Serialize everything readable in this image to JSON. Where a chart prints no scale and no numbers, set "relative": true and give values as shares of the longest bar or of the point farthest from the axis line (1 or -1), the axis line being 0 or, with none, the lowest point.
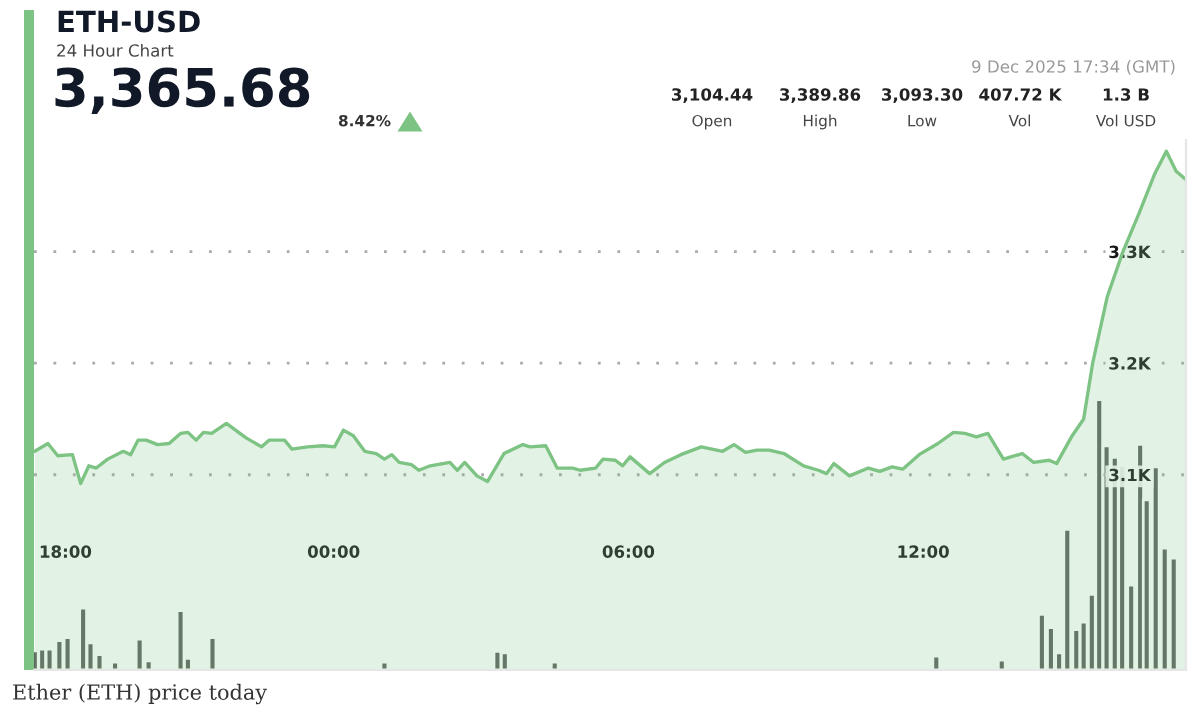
{
  "chart_data": [
    {
      "type": "area",
      "title": "ETH-USD",
      "subtitle": "24 Hour Chart",
      "annotations": [
        "3,365.68",
        "8.42%",
        "9 Dec 2025 17:34 (GMT)",
        "3,104.44",
        "3,389.86",
        "3,093.30",
        "407.72 K",
        "1.3 B",
        "Open",
        "High",
        "Low",
        "Vol",
        "Vol USD",
        "Ether (ETH) price today"
      ],
      "color": "#7dc383",
      "grid": "y",
      "x": [
        "2025-12-08T17:55",
        "2025-12-08T18:11",
        "2025-12-08T18:23",
        "2025-12-08T18:41",
        "2025-12-08T18:51",
        "2025-12-08T19:01",
        "2025-12-08T19:10",
        "2025-12-08T19:24",
        "2025-12-08T19:43",
        "2025-12-08T19:52",
        "2025-12-08T20:01",
        "2025-12-08T20:11",
        "2025-12-08T20:25",
        "2025-12-08T20:39",
        "2025-12-08T20:53",
        "2025-12-08T21:02",
        "2025-12-08T21:12",
        "2025-12-08T21:21",
        "2025-12-08T21:31",
        "2025-12-08T21:49",
        "2025-12-08T22:13",
        "2025-12-08T22:32",
        "2025-12-08T22:41",
        "2025-12-08T23:00",
        "2025-12-08T23:09",
        "2025-12-08T23:28",
        "2025-12-08T23:47",
        "2025-12-09T00:01",
        "2025-12-09T00:12",
        "2025-12-09T00:24",
        "2025-12-09T00:38",
        "2025-12-09T00:52",
        "2025-12-09T01:02",
        "2025-12-09T01:11",
        "2025-12-09T01:20",
        "2025-12-09T01:35",
        "2025-12-09T01:44",
        "2025-12-09T01:58",
        "2025-12-09T02:22",
        "2025-12-09T02:31",
        "2025-12-09T02:40",
        "2025-12-09T02:55",
        "2025-12-09T03:08",
        "2025-12-09T03:28",
        "2025-12-09T03:51",
        "2025-12-09T04:00",
        "2025-12-09T04:19",
        "2025-12-09T04:33",
        "2025-12-09T04:52",
        "2025-12-09T05:01",
        "2025-12-09T05:20",
        "2025-12-09T05:29",
        "2025-12-09T05:44",
        "2025-12-09T05:53",
        "2025-12-09T06:02",
        "2025-12-09T06:26",
        "2025-12-09T06:44",
        "2025-12-09T07:04",
        "2025-12-09T07:29",
        "2025-12-09T07:55",
        "2025-12-09T08:09",
        "2025-12-09T08:23",
        "2025-12-09T08:37",
        "2025-12-09T08:52",
        "2025-12-09T09:10",
        "2025-12-09T09:34",
        "2025-12-09T09:52",
        "2025-12-09T10:02",
        "2025-12-09T10:11",
        "2025-12-09T10:30",
        "2025-12-09T10:53",
        "2025-12-09T11:07",
        "2025-12-09T11:22",
        "2025-12-09T11:35",
        "2025-12-09T11:55",
        "2025-12-09T12:18",
        "2025-12-09T12:37",
        "2025-12-09T12:51",
        "2025-12-09T13:05",
        "2025-12-09T13:19",
        "2025-12-09T13:38",
        "2025-12-09T14:01",
        "2025-12-09T14:15",
        "2025-12-09T14:34",
        "2025-12-09T14:43",
        "2025-12-09T15:02",
        "2025-12-09T15:16",
        "2025-12-09T15:27",
        "2025-12-09T15:45",
        "2025-12-09T16:04",
        "2025-12-09T16:24",
        "2025-12-09T16:43",
        "2025-12-09T16:57",
        "2025-12-09T17:09",
        "2025-12-09T17:20"
      ],
      "values": [
        3121,
        3128,
        3117,
        3118,
        3092,
        3108,
        3106,
        3114,
        3121,
        3118,
        3131,
        3131,
        3127,
        3128,
        3137,
        3138,
        3131,
        3138,
        3137,
        3146,
        3133,
        3125,
        3131,
        3131,
        3123,
        3125,
        3126,
        3125,
        3140,
        3135,
        3121,
        3119,
        3114,
        3118,
        3111,
        3109,
        3104,
        3108,
        3111,
        3104,
        3111,
        3099,
        3094,
        3119,
        3127,
        3125,
        3126,
        3106,
        3106,
        3104,
        3106,
        3114,
        3113,
        3108,
        3116,
        3101,
        3111,
        3118,
        3125,
        3121,
        3127,
        3120,
        3122,
        3122,
        3119,
        3108,
        3104,
        3101,
        3110,
        3099,
        3106,
        3103,
        3107,
        3105,
        3118,
        3128,
        3138,
        3137,
        3134,
        3137,
        3114,
        3119,
        3111,
        3113,
        3110,
        3135,
        3150,
        3200,
        3260,
        3300,
        3335,
        3370,
        3390,
        3372,
        3365
      ],
      "xlim": [
        "2025-12-08T17:54",
        "2025-12-09T17:21"
      ],
      "xticks": [
        {
          "value": "2025-12-08T18:00",
          "label": "18:00"
        },
        {
          "value": "2025-12-09T00:00",
          "label": "00:00"
        },
        {
          "value": "2025-12-09T06:00",
          "label": "06:00"
        },
        {
          "value": "2025-12-09T12:00",
          "label": "12:00"
        }
      ],
      "ylim": [
        2925,
        3400
      ],
      "yticks": [
        {
          "value": 3100,
          "label": "3.1K"
        },
        {
          "value": 3200,
          "label": "3.2K"
        },
        {
          "value": 3300,
          "label": "3.3K"
        }
      ]
    },
    {
      "type": "bar",
      "relative": true,
      "color": "#5f635f",
      "tick_labels": false,
      "xlim": [
        "2025-12-08T17:54",
        "2025-12-09T17:21"
      ],
      "x": [
        "2025-12-08T17:55",
        "2025-12-08T18:04",
        "2025-12-08T18:13",
        "2025-12-08T18:25",
        "2025-12-08T18:35",
        "2025-12-08T18:54",
        "2025-12-08T19:03",
        "2025-12-08T19:14",
        "2025-12-08T19:33",
        "2025-12-08T20:03",
        "2025-12-08T20:14",
        "2025-12-08T20:23",
        "2025-12-08T20:53",
        "2025-12-08T21:02",
        "2025-12-08T21:32",
        "2025-12-09T01:02",
        "2025-12-09T01:32",
        "2025-12-09T03:20",
        "2025-12-09T03:29",
        "2025-12-09T04:30",
        "2025-12-09T12:16",
        "2025-12-09T13:26",
        "2025-12-09T13:36",
        "2025-12-09T14:25",
        "2025-12-09T14:36",
        "2025-12-09T14:46",
        "2025-12-09T14:56",
        "2025-12-09T15:07",
        "2025-12-09T15:16",
        "2025-12-09T15:26",
        "2025-12-09T15:35",
        "2025-12-09T15:44",
        "2025-12-09T15:54",
        "2025-12-09T16:03",
        "2025-12-09T16:14",
        "2025-12-09T16:25",
        "2025-12-09T16:33",
        "2025-12-09T16:44",
        "2025-12-09T16:55",
        "2025-12-09T17:06"
      ],
      "values": [
        0.071,
        0.077,
        0.077,
        0.109,
        0.12,
        0.229,
        0.1,
        0.057,
        0.029,
        0.114,
        0.034,
        null,
        0.22,
        0.043,
        0.12,
        0.029,
        null,
        0.069,
        0.063,
        0.029,
        0.051,
        null,
        0.037,
        0.206,
        0.157,
        0.063,
        0.52,
        0.149,
        0.177,
        0.28,
        1,
        0.829,
        0.786,
        0.757,
        0.314,
        0.834,
        0.629,
        0.751,
        0.451,
        0.414
      ]
    }
  ]
}
